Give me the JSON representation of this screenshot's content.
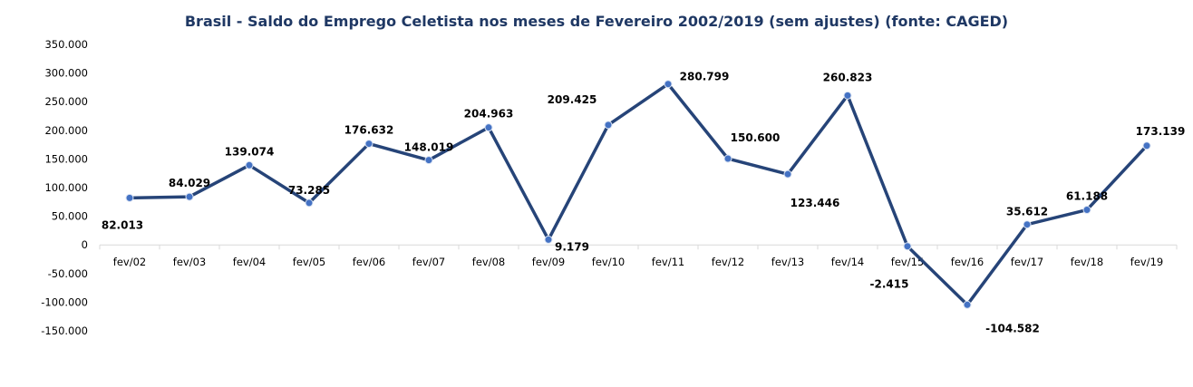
{
  "chart_data": {
    "type": "line",
    "title": "Brasil - Saldo do Emprego Celetista nos meses de Fevereiro 2002/2019 (sem ajustes)  (fonte: CAGED)",
    "xlabel": "",
    "ylabel": "",
    "categories": [
      "fev/02",
      "fev/03",
      "fev/04",
      "fev/05",
      "fev/06",
      "fev/07",
      "fev/08",
      "fev/09",
      "fev/10",
      "fev/11",
      "fev/12",
      "fev/13",
      "fev/14",
      "fev/15",
      "fev/16",
      "fev/17",
      "fev/18",
      "fev/19"
    ],
    "values": [
      82013,
      84029,
      139074,
      73285,
      176632,
      148019,
      204963,
      9179,
      209425,
      280799,
      150600,
      123446,
      260823,
      -2415,
      -104582,
      35612,
      61188,
      173139
    ],
    "data_labels": [
      "82.013",
      "84.029",
      "139.074",
      "73.285",
      "176.632",
      "148.019",
      "204.963",
      "9.179",
      "209.425",
      "280.799",
      "150.600",
      "123.446",
      "260.823",
      "-2.415",
      "-104.582",
      "35.612",
      "61.188",
      "173.139"
    ],
    "ylim": [
      -150000,
      350000
    ],
    "yticks": [
      350000,
      300000,
      250000,
      200000,
      150000,
      100000,
      50000,
      0,
      -50000,
      -100000,
      -150000
    ],
    "ytick_labels": [
      "350.000",
      "300.000",
      "250.000",
      "200.000",
      "150.000",
      "100.000",
      "50.000",
      "0",
      "-50.000",
      "-100.000",
      "-150.000"
    ],
    "grid": false,
    "legend": "none",
    "colors": {
      "line": "#264478",
      "marker": "#4472c4",
      "title": "#1f3864",
      "axis": "#d9d9d9"
    }
  }
}
